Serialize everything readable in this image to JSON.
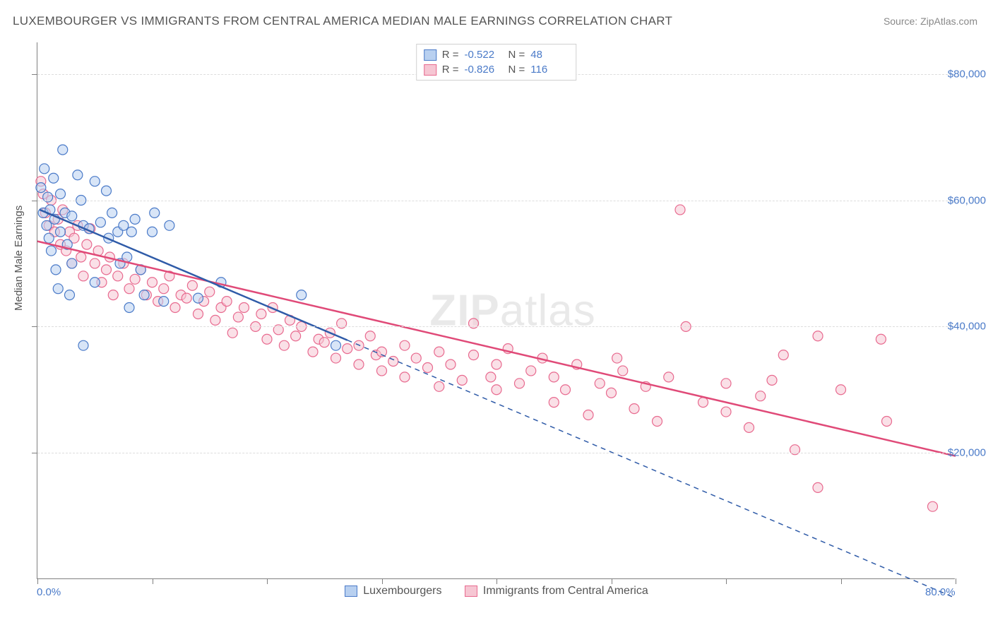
{
  "title": "LUXEMBOURGER VS IMMIGRANTS FROM CENTRAL AMERICA MEDIAN MALE EARNINGS CORRELATION CHART",
  "source_label": "Source: ",
  "source_name": "ZipAtlas.com",
  "watermark": "ZIPatlas",
  "chart": {
    "type": "scatter",
    "ylabel": "Median Male Earnings",
    "xlim": [
      0,
      80
    ],
    "ylim": [
      0,
      85000
    ],
    "x_min_label": "0.0%",
    "x_max_label": "80.0%",
    "y_grid_values": [
      20000,
      40000,
      60000,
      80000
    ],
    "y_grid_labels": [
      "$20,000",
      "$40,000",
      "$60,000",
      "$80,000"
    ],
    "x_tick_values": [
      0,
      10,
      20,
      30,
      40,
      50,
      60,
      70,
      80
    ],
    "background_color": "#ffffff",
    "grid_color": "#dddddd",
    "axis_color": "#808080",
    "tick_label_color": "#4a7ac8",
    "axis_label_color": "#555555",
    "point_radius": 7,
    "point_opacity": 0.55,
    "point_stroke_width": 1.2,
    "line_width": 2.5
  },
  "series": [
    {
      "name": "Luxembourgers",
      "fill_color": "#b8d0f0",
      "stroke_color": "#4a7ac8",
      "line_color": "#2f5ba8",
      "R": "-0.522",
      "N": "48",
      "trend": {
        "x1": 0.2,
        "y1": 58500,
        "x2": 80,
        "y2": -3000,
        "dash_after_x": 27
      },
      "points": [
        [
          0.3,
          62000
        ],
        [
          0.5,
          58000
        ],
        [
          0.6,
          65000
        ],
        [
          0.8,
          56000
        ],
        [
          0.9,
          60500
        ],
        [
          1.0,
          54000
        ],
        [
          1.1,
          58500
        ],
        [
          1.2,
          52000
        ],
        [
          1.4,
          63500
        ],
        [
          1.5,
          57000
        ],
        [
          1.6,
          49000
        ],
        [
          1.8,
          46000
        ],
        [
          2.0,
          61000
        ],
        [
          2.0,
          55000
        ],
        [
          2.2,
          68000
        ],
        [
          2.4,
          58000
        ],
        [
          2.6,
          53000
        ],
        [
          2.8,
          45000
        ],
        [
          3.0,
          57500
        ],
        [
          3.0,
          50000
        ],
        [
          3.5,
          64000
        ],
        [
          3.8,
          60000
        ],
        [
          4.0,
          56000
        ],
        [
          4.0,
          37000
        ],
        [
          4.5,
          55500
        ],
        [
          5.0,
          63000
        ],
        [
          5.0,
          47000
        ],
        [
          5.5,
          56500
        ],
        [
          6.0,
          61500
        ],
        [
          6.2,
          54000
        ],
        [
          6.5,
          58000
        ],
        [
          7.0,
          55000
        ],
        [
          7.2,
          50000
        ],
        [
          7.5,
          56000
        ],
        [
          8.0,
          43000
        ],
        [
          8.2,
          55000
        ],
        [
          8.5,
          57000
        ],
        [
          9.0,
          49000
        ],
        [
          9.3,
          45000
        ],
        [
          10.0,
          55000
        ],
        [
          10.2,
          58000
        ],
        [
          11.0,
          44000
        ],
        [
          11.5,
          56000
        ],
        [
          14.0,
          44500
        ],
        [
          16.0,
          47000
        ],
        [
          23.0,
          45000
        ],
        [
          26.0,
          37000
        ],
        [
          7.8,
          51000
        ]
      ]
    },
    {
      "name": "Immigrants from Central America",
      "fill_color": "#f6c6d3",
      "stroke_color": "#e86a8f",
      "line_color": "#e04a78",
      "R": "-0.826",
      "N": "116",
      "trend": {
        "x1": 0,
        "y1": 53500,
        "x2": 80,
        "y2": 19500,
        "dash_after_x": 80
      },
      "points": [
        [
          0.3,
          63000
        ],
        [
          0.5,
          61000
        ],
        [
          0.7,
          58000
        ],
        [
          1.0,
          56000
        ],
        [
          1.2,
          60000
        ],
        [
          1.5,
          55000
        ],
        [
          1.8,
          57000
        ],
        [
          2.0,
          53000
        ],
        [
          2.2,
          58500
        ],
        [
          2.5,
          52000
        ],
        [
          2.8,
          55000
        ],
        [
          3.0,
          50000
        ],
        [
          3.2,
          54000
        ],
        [
          3.5,
          56000
        ],
        [
          3.8,
          51000
        ],
        [
          4.0,
          48000
        ],
        [
          4.3,
          53000
        ],
        [
          4.6,
          55500
        ],
        [
          5.0,
          50000
        ],
        [
          5.3,
          52000
        ],
        [
          5.6,
          47000
        ],
        [
          6.0,
          49000
        ],
        [
          6.3,
          51000
        ],
        [
          6.6,
          45000
        ],
        [
          7.0,
          48000
        ],
        [
          7.5,
          50000
        ],
        [
          8.0,
          46000
        ],
        [
          8.5,
          47500
        ],
        [
          9.0,
          49000
        ],
        [
          9.5,
          45000
        ],
        [
          10.0,
          47000
        ],
        [
          10.5,
          44000
        ],
        [
          11.0,
          46000
        ],
        [
          11.5,
          48000
        ],
        [
          12.0,
          43000
        ],
        [
          12.5,
          45000
        ],
        [
          13.0,
          44500
        ],
        [
          13.5,
          46500
        ],
        [
          14.0,
          42000
        ],
        [
          14.5,
          44000
        ],
        [
          15.0,
          45500
        ],
        [
          15.5,
          41000
        ],
        [
          16.0,
          43000
        ],
        [
          16.5,
          44000
        ],
        [
          17.0,
          39000
        ],
        [
          17.5,
          41500
        ],
        [
          18.0,
          43000
        ],
        [
          19.0,
          40000
        ],
        [
          19.5,
          42000
        ],
        [
          20.0,
          38000
        ],
        [
          20.5,
          43000
        ],
        [
          21.0,
          39500
        ],
        [
          21.5,
          37000
        ],
        [
          22.0,
          41000
        ],
        [
          22.5,
          38500
        ],
        [
          23.0,
          40000
        ],
        [
          24.0,
          36000
        ],
        [
          24.5,
          38000
        ],
        [
          25.0,
          37500
        ],
        [
          25.5,
          39000
        ],
        [
          26.0,
          35000
        ],
        [
          26.5,
          40500
        ],
        [
          27.0,
          36500
        ],
        [
          28.0,
          34000
        ],
        [
          28.0,
          37000
        ],
        [
          29.0,
          38500
        ],
        [
          29.5,
          35500
        ],
        [
          30.0,
          36000
        ],
        [
          30.0,
          33000
        ],
        [
          31.0,
          34500
        ],
        [
          32.0,
          37000
        ],
        [
          32.0,
          32000
        ],
        [
          33.0,
          35000
        ],
        [
          34.0,
          33500
        ],
        [
          35.0,
          30500
        ],
        [
          35.0,
          36000
        ],
        [
          36.0,
          34000
        ],
        [
          37.0,
          31500
        ],
        [
          38.0,
          35500
        ],
        [
          38.0,
          40500
        ],
        [
          39.5,
          32000
        ],
        [
          40.0,
          34000
        ],
        [
          40.0,
          30000
        ],
        [
          41.0,
          36500
        ],
        [
          42.0,
          31000
        ],
        [
          43.0,
          33000
        ],
        [
          44.0,
          35000
        ],
        [
          45.0,
          28000
        ],
        [
          45.0,
          32000
        ],
        [
          46.0,
          30000
        ],
        [
          47.0,
          34000
        ],
        [
          48.0,
          26000
        ],
        [
          49.0,
          31000
        ],
        [
          50.0,
          29500
        ],
        [
          51.0,
          33000
        ],
        [
          52.0,
          27000
        ],
        [
          53.0,
          30500
        ],
        [
          54.0,
          25000
        ],
        [
          55.0,
          32000
        ],
        [
          56.0,
          58500
        ],
        [
          56.5,
          40000
        ],
        [
          58.0,
          28000
        ],
        [
          60.0,
          26500
        ],
        [
          60.0,
          31000
        ],
        [
          62.0,
          24000
        ],
        [
          63.0,
          29000
        ],
        [
          65.0,
          35500
        ],
        [
          66.0,
          20500
        ],
        [
          68.0,
          38500
        ],
        [
          68.0,
          14500
        ],
        [
          70.0,
          30000
        ],
        [
          73.5,
          38000
        ],
        [
          74.0,
          25000
        ],
        [
          78.0,
          11500
        ],
        [
          64.0,
          31500
        ],
        [
          50.5,
          35000
        ]
      ]
    }
  ],
  "legend_top": {
    "R_label": "R =",
    "N_label": "N ="
  },
  "legend_bottom_items": [
    {
      "label": "Luxembourgers",
      "fill": "#b8d0f0",
      "stroke": "#4a7ac8"
    },
    {
      "label": "Immigrants from Central America",
      "fill": "#f6c6d3",
      "stroke": "#e86a8f"
    }
  ]
}
